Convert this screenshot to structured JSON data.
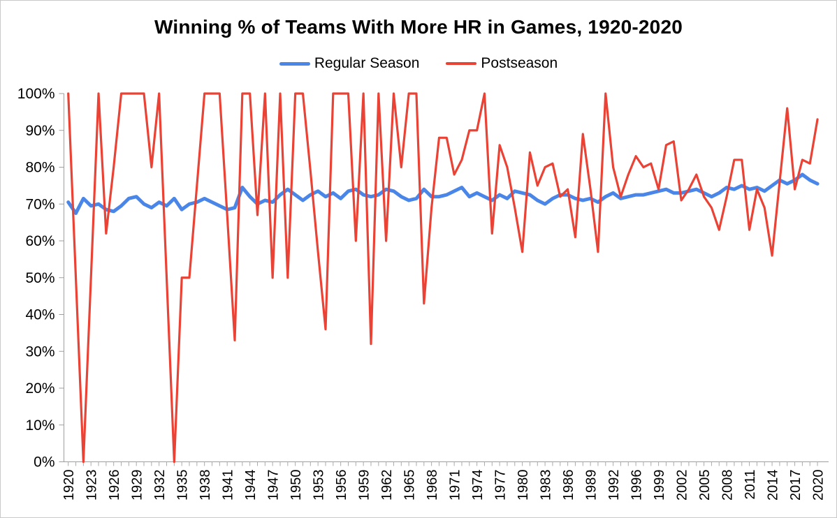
{
  "title": "Winning % of Teams With More HR in Games, 1920-2020",
  "chart_data": {
    "type": "line",
    "title": "Winning % of Teams With More HR in Games, 1920-2020",
    "xlabel": "",
    "ylabel": "",
    "ylim": [
      0,
      100
    ],
    "grid": false,
    "legend_position": "top",
    "y_tick_labels": [
      "0%",
      "10%",
      "20%",
      "30%",
      "40%",
      "50%",
      "60%",
      "70%",
      "80%",
      "90%",
      "100%"
    ],
    "x_tick_labels": [
      "1920",
      "1923",
      "1926",
      "1929",
      "1932",
      "1935",
      "1938",
      "1941",
      "1944",
      "1947",
      "1950",
      "1953",
      "1956",
      "1959",
      "1962",
      "1965",
      "1968",
      "1971",
      "1974",
      "1977",
      "1980",
      "1983",
      "1986",
      "1989",
      "1992",
      "1996",
      "1999",
      "2002",
      "2005",
      "2008",
      "2011",
      "2014",
      "2017",
      "2020"
    ],
    "x": [
      "1920",
      "1921",
      "1922",
      "1923",
      "1924",
      "1925",
      "1926",
      "1927",
      "1928",
      "1929",
      "1930",
      "1931",
      "1932",
      "1933",
      "1934",
      "1935",
      "1936",
      "1937",
      "1938",
      "1939",
      "1940",
      "1941",
      "1942",
      "1943",
      "1944",
      "1945",
      "1946",
      "1947",
      "1948",
      "1949",
      "1950",
      "1951",
      "1952",
      "1953",
      "1954",
      "1955",
      "1956",
      "1957",
      "1958",
      "1959",
      "1960",
      "1961",
      "1962",
      "1963",
      "1964",
      "1965",
      "1966",
      "1967",
      "1968",
      "1969",
      "1970",
      "1971",
      "1972",
      "1973",
      "1974",
      "1975",
      "1976",
      "1977",
      "1978",
      "1979",
      "1980",
      "1981",
      "1982",
      "1983",
      "1984",
      "1985",
      "1986",
      "1987",
      "1988",
      "1989",
      "1990",
      "1991",
      "1992",
      "1993",
      "1995",
      "1996",
      "1997",
      "1998",
      "1999",
      "2000",
      "2001",
      "2002",
      "2003",
      "2004",
      "2005",
      "2006",
      "2007",
      "2008",
      "2009",
      "2010",
      "2011",
      "2012",
      "2013",
      "2014",
      "2015",
      "2016",
      "2017",
      "2018",
      "2019",
      "2020"
    ],
    "series": [
      {
        "name": "Regular Season",
        "color": "#4a86e8",
        "stroke_width": 5,
        "values": [
          70.5,
          67.5,
          71.5,
          69.5,
          70,
          68.5,
          68,
          69.5,
          71.5,
          72,
          70,
          69,
          70.5,
          69.5,
          71.5,
          68.5,
          70,
          70.5,
          71.5,
          70.5,
          69.5,
          68.5,
          69,
          74.5,
          72,
          70,
          71,
          70.5,
          72.5,
          74,
          72.5,
          71,
          72.5,
          73.5,
          72,
          73,
          71.5,
          73.5,
          74,
          72.5,
          72,
          72.5,
          74,
          73.5,
          72,
          71,
          71.5,
          74,
          72,
          72,
          72.5,
          73.5,
          74.5,
          72,
          73,
          72,
          71,
          72.5,
          71.5,
          73.5,
          73,
          72.5,
          71,
          70,
          71.5,
          72.5,
          72.5,
          71.5,
          71,
          71.5,
          70.5,
          72,
          73,
          71.5,
          72,
          72.5,
          72.5,
          73,
          73.5,
          74,
          73,
          73,
          73.5,
          74,
          73,
          72,
          73,
          74.5,
          74,
          75,
          74,
          74.5,
          73.5,
          75,
          76.5,
          75.5,
          76.5,
          78,
          76.5,
          75.5
        ]
      },
      {
        "name": "Postseason",
        "color": "#ea4335",
        "stroke_width": 3.2,
        "values": [
          100,
          50,
          0,
          50,
          100,
          62,
          80,
          100,
          100,
          100,
          100,
          80,
          100,
          50,
          0,
          50,
          50,
          75,
          100,
          100,
          100,
          67,
          33,
          100,
          100,
          67,
          100,
          50,
          100,
          50,
          100,
          100,
          79,
          57,
          36,
          100,
          100,
          100,
          60,
          100,
          32,
          100,
          60,
          100,
          80,
          100,
          100,
          43,
          69,
          88,
          88,
          78,
          82,
          90,
          90,
          100,
          62,
          86,
          80,
          69,
          57,
          84,
          75,
          80,
          81,
          72,
          74,
          61,
          89,
          74,
          57,
          100,
          80,
          72,
          78,
          83,
          80,
          81,
          74,
          86,
          87,
          71,
          74,
          78,
          72,
          69,
          63,
          72,
          82,
          82,
          63,
          74,
          69,
          56,
          76,
          96,
          74,
          82,
          81,
          93
        ]
      }
    ]
  }
}
